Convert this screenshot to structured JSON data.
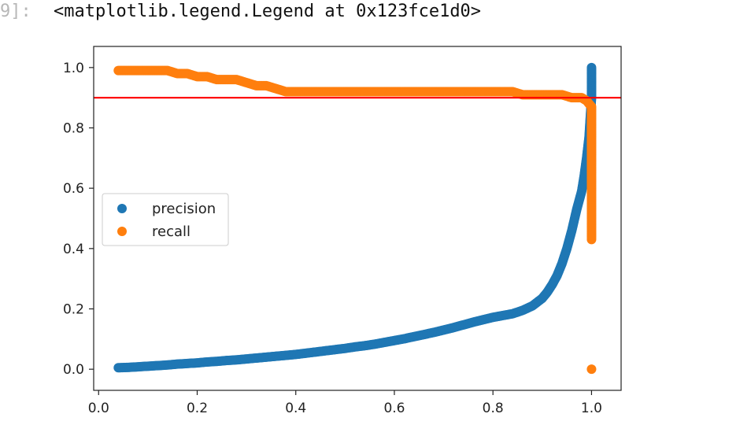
{
  "cell": {
    "prompt": "9]:",
    "output_text": "<matplotlib.legend.Legend at 0x123fce1d0>"
  },
  "chart_data": {
    "type": "scatter",
    "xlim": [
      -0.01,
      1.06
    ],
    "ylim": [
      -0.07,
      1.07
    ],
    "x_ticks": [
      0.0,
      0.2,
      0.4,
      0.6,
      0.8,
      1.0
    ],
    "x_tick_labels": [
      "0.0",
      "0.2",
      "0.4",
      "0.6",
      "0.8",
      "1.0"
    ],
    "y_ticks": [
      0.0,
      0.2,
      0.4,
      0.6,
      0.8,
      1.0
    ],
    "y_tick_labels": [
      "0.0",
      "0.2",
      "0.4",
      "0.6",
      "0.8",
      "1.0"
    ],
    "grid": false,
    "legend_position": "center-left",
    "hline": {
      "y": 0.9,
      "color": "#ff0000"
    },
    "series": [
      {
        "name": "precision",
        "color": "#1f77b4",
        "points": [
          [
            0.04,
            0.005
          ],
          [
            0.06,
            0.006
          ],
          [
            0.08,
            0.008
          ],
          [
            0.1,
            0.01
          ],
          [
            0.12,
            0.012
          ],
          [
            0.14,
            0.014
          ],
          [
            0.16,
            0.017
          ],
          [
            0.18,
            0.019
          ],
          [
            0.2,
            0.021
          ],
          [
            0.22,
            0.024
          ],
          [
            0.24,
            0.026
          ],
          [
            0.26,
            0.029
          ],
          [
            0.28,
            0.031
          ],
          [
            0.3,
            0.034
          ],
          [
            0.32,
            0.037
          ],
          [
            0.34,
            0.04
          ],
          [
            0.36,
            0.043
          ],
          [
            0.38,
            0.046
          ],
          [
            0.4,
            0.049
          ],
          [
            0.42,
            0.053
          ],
          [
            0.44,
            0.057
          ],
          [
            0.46,
            0.061
          ],
          [
            0.48,
            0.065
          ],
          [
            0.5,
            0.069
          ],
          [
            0.52,
            0.074
          ],
          [
            0.54,
            0.078
          ],
          [
            0.56,
            0.083
          ],
          [
            0.58,
            0.089
          ],
          [
            0.6,
            0.095
          ],
          [
            0.62,
            0.101
          ],
          [
            0.64,
            0.108
          ],
          [
            0.66,
            0.115
          ],
          [
            0.68,
            0.122
          ],
          [
            0.7,
            0.13
          ],
          [
            0.72,
            0.138
          ],
          [
            0.74,
            0.147
          ],
          [
            0.76,
            0.156
          ],
          [
            0.78,
            0.164
          ],
          [
            0.8,
            0.172
          ],
          [
            0.82,
            0.178
          ],
          [
            0.84,
            0.184
          ],
          [
            0.86,
            0.195
          ],
          [
            0.88,
            0.21
          ],
          [
            0.9,
            0.235
          ],
          [
            0.91,
            0.255
          ],
          [
            0.92,
            0.28
          ],
          [
            0.93,
            0.31
          ],
          [
            0.94,
            0.35
          ],
          [
            0.95,
            0.4
          ],
          [
            0.96,
            0.46
          ],
          [
            0.97,
            0.53
          ],
          [
            0.975,
            0.56
          ],
          [
            0.98,
            0.59
          ],
          [
            0.985,
            0.64
          ],
          [
            0.99,
            0.7
          ],
          [
            0.995,
            0.77
          ],
          [
            1.0,
            0.9
          ],
          [
            1.0,
            1.0
          ]
        ]
      },
      {
        "name": "recall",
        "color": "#ff7f0e",
        "points": [
          [
            0.04,
            0.99
          ],
          [
            0.06,
            0.99
          ],
          [
            0.08,
            0.99
          ],
          [
            0.1,
            0.99
          ],
          [
            0.12,
            0.99
          ],
          [
            0.14,
            0.99
          ],
          [
            0.16,
            0.98
          ],
          [
            0.18,
            0.98
          ],
          [
            0.2,
            0.97
          ],
          [
            0.22,
            0.97
          ],
          [
            0.24,
            0.96
          ],
          [
            0.26,
            0.96
          ],
          [
            0.28,
            0.96
          ],
          [
            0.3,
            0.95
          ],
          [
            0.32,
            0.94
          ],
          [
            0.34,
            0.94
          ],
          [
            0.36,
            0.93
          ],
          [
            0.38,
            0.92
          ],
          [
            0.4,
            0.92
          ],
          [
            0.42,
            0.92
          ],
          [
            0.44,
            0.92
          ],
          [
            0.46,
            0.92
          ],
          [
            0.48,
            0.92
          ],
          [
            0.5,
            0.92
          ],
          [
            0.52,
            0.92
          ],
          [
            0.54,
            0.92
          ],
          [
            0.56,
            0.92
          ],
          [
            0.58,
            0.92
          ],
          [
            0.6,
            0.92
          ],
          [
            0.62,
            0.92
          ],
          [
            0.64,
            0.92
          ],
          [
            0.66,
            0.92
          ],
          [
            0.68,
            0.92
          ],
          [
            0.7,
            0.92
          ],
          [
            0.72,
            0.92
          ],
          [
            0.74,
            0.92
          ],
          [
            0.76,
            0.92
          ],
          [
            0.78,
            0.92
          ],
          [
            0.8,
            0.92
          ],
          [
            0.82,
            0.92
          ],
          [
            0.84,
            0.92
          ],
          [
            0.86,
            0.91
          ],
          [
            0.88,
            0.91
          ],
          [
            0.9,
            0.91
          ],
          [
            0.92,
            0.91
          ],
          [
            0.94,
            0.91
          ],
          [
            0.96,
            0.9
          ],
          [
            0.98,
            0.9
          ],
          [
            0.99,
            0.89
          ],
          [
            1.0,
            0.87
          ],
          [
            1.0,
            0.8
          ],
          [
            1.0,
            0.7
          ],
          [
            1.0,
            0.6
          ],
          [
            1.0,
            0.5
          ],
          [
            1.0,
            0.43
          ],
          [
            1.0,
            0.0
          ]
        ]
      }
    ]
  }
}
